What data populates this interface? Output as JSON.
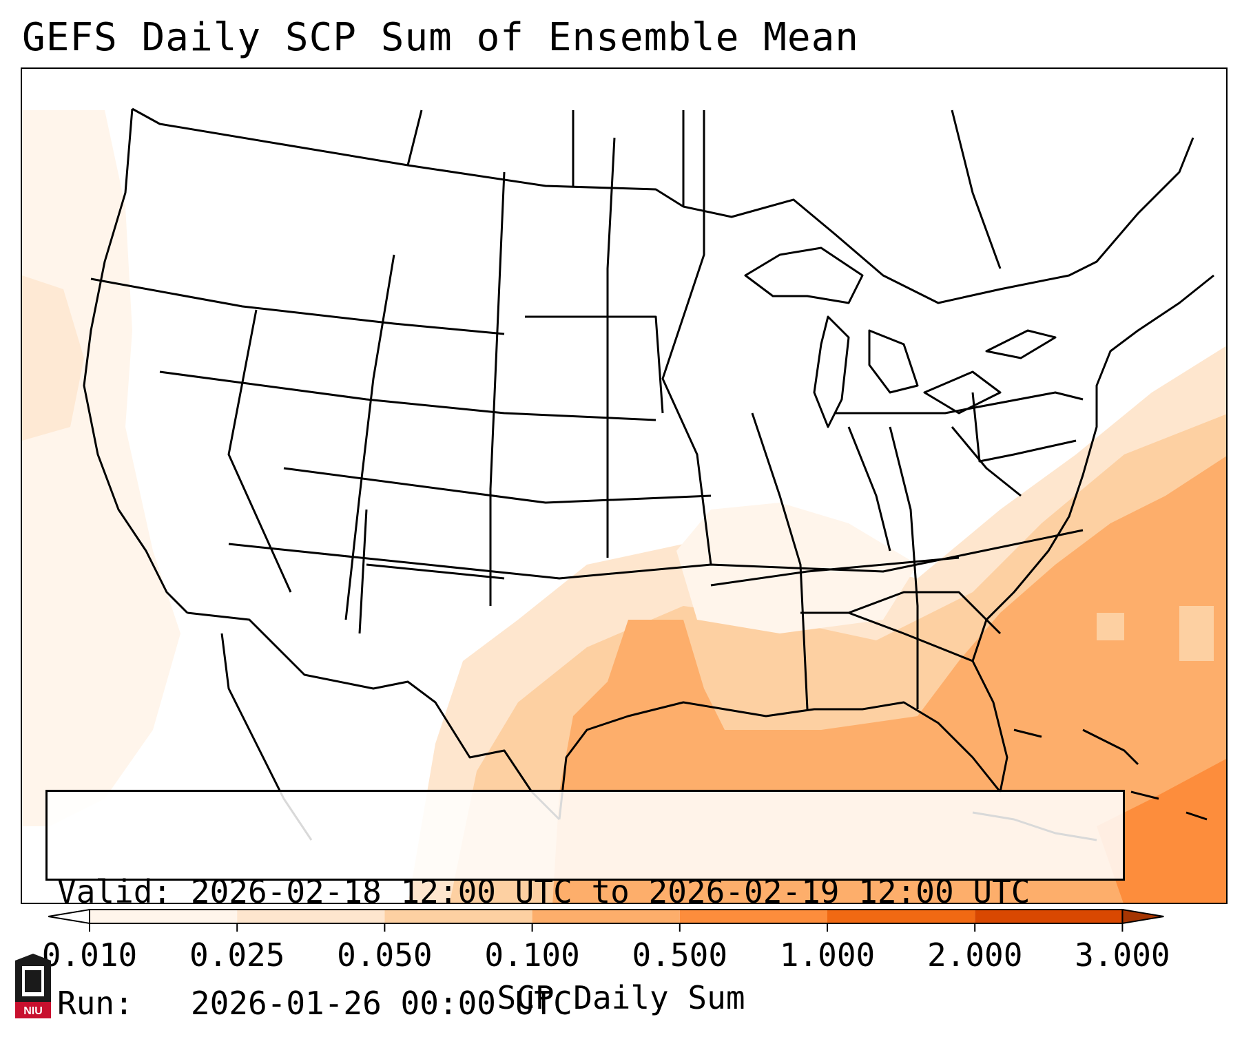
{
  "title": "GEFS Daily SCP Sum of Ensemble Mean",
  "info": {
    "valid_label": "Valid:",
    "valid_value": "2026-02-18 12:00 UTC to 2026-02-19 12:00 UTC",
    "run_label": "Run:",
    "run_value": "2026-01-26 00:00 UTC"
  },
  "colorbar": {
    "label": "SCP Daily Sum",
    "ticks": [
      "0.010",
      "0.025",
      "0.050",
      "0.100",
      "0.500",
      "1.000",
      "2.000",
      "3.000"
    ],
    "colors": [
      "#fff5eb",
      "#fee6ce",
      "#fdd0a2",
      "#fdae6b",
      "#fd8d3c",
      "#f16913",
      "#d94801",
      "#a63603"
    ],
    "extend": "both"
  },
  "logo": {
    "text": "NIU",
    "colors": {
      "body": "#1a1a1a",
      "band": "#c8102e"
    }
  },
  "map": {
    "region": "CONUS",
    "field_colors": {
      "very_low": "#fff5eb",
      "low": "#fee6ce",
      "mid": "#fdd0a2",
      "high": "#fdae6b",
      "highest": "#fd8d3c"
    }
  }
}
